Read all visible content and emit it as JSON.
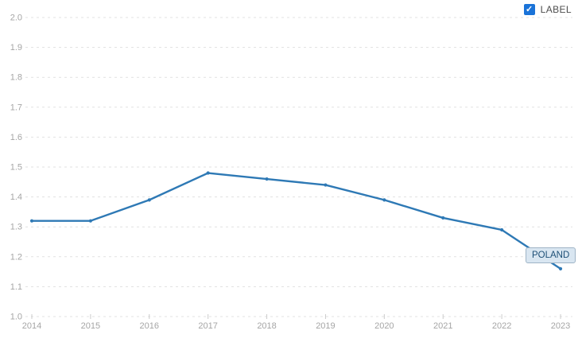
{
  "legend": {
    "label": "LABEL",
    "checked": true,
    "checkmark_icon": "✓"
  },
  "series_badge": {
    "text": "POLAND"
  },
  "colors": {
    "line": "#2e79b5",
    "grid": "#e1e1e1",
    "tick": "#cccccc",
    "axis_text": "#a5a5a5",
    "checkbox": "#1a73d8",
    "legend_text": "#4d4d4d",
    "badge_bg": "#d9e6f1",
    "badge_border": "#9fb4c6",
    "badge_text": "#1d4f76"
  },
  "chart_data": {
    "type": "line",
    "x": [
      2014,
      2015,
      2016,
      2017,
      2018,
      2019,
      2020,
      2021,
      2022,
      2023
    ],
    "series": [
      {
        "name": "POLAND",
        "values": [
          1.32,
          1.32,
          1.39,
          1.48,
          1.46,
          1.44,
          1.39,
          1.33,
          1.29,
          1.16
        ]
      }
    ],
    "title": "",
    "xlabel": "",
    "ylabel": "",
    "ylim": [
      1.0,
      2.0
    ],
    "yticks": [
      2.0,
      1.9,
      1.8,
      1.7,
      1.6,
      1.5,
      1.4,
      1.3,
      1.2,
      1.1,
      1.0
    ],
    "grid": "dashed-horizontal",
    "legend_position": "top-right",
    "annotation": "POLAND"
  }
}
